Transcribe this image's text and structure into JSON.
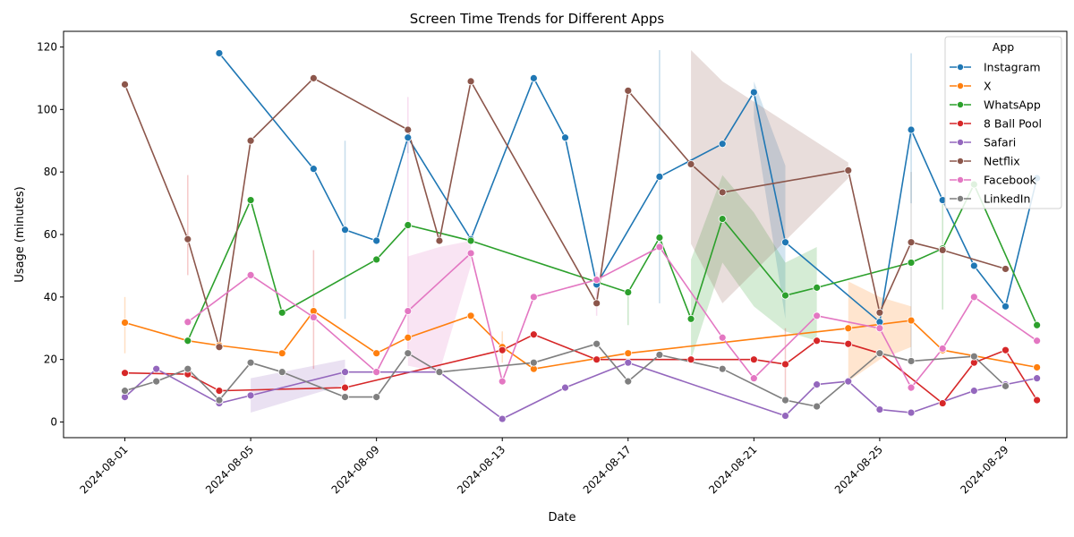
{
  "chart_data": {
    "type": "line",
    "title": "Screen Time Trends for Different Apps",
    "xlabel": "Date",
    "ylabel": "Usage (minutes)",
    "x_tick_labels": [
      "2024-08-01",
      "2024-08-05",
      "2024-08-09",
      "2024-08-13",
      "2024-08-17",
      "2024-08-21",
      "2024-08-25",
      "2024-08-29"
    ],
    "y_ticks": [
      0,
      20,
      40,
      60,
      80,
      100,
      120
    ],
    "ylim": [
      -5,
      125
    ],
    "x_range_days": [
      -0.95,
      30.95
    ],
    "legend": {
      "title": "App",
      "placement": "top-right"
    },
    "grid": false,
    "series": [
      {
        "name": "Instagram",
        "color": "#1f77b4",
        "points": [
          [
            4,
            118
          ],
          [
            7,
            81
          ],
          [
            8,
            61.5
          ],
          [
            9,
            58
          ],
          [
            10,
            91
          ],
          [
            12,
            58.5
          ],
          [
            14,
            110
          ],
          [
            15,
            91
          ],
          [
            16,
            44
          ],
          [
            18,
            78.5
          ],
          [
            20,
            89
          ],
          [
            21,
            105.5
          ],
          [
            22,
            57.5
          ],
          [
            25,
            32
          ],
          [
            26,
            93.5
          ],
          [
            27,
            71
          ],
          [
            28,
            50
          ],
          [
            29,
            37
          ],
          [
            30,
            78
          ]
        ],
        "bands": [
          [
            [
              21,
              109,
              97
            ],
            [
              22,
              82,
              33
            ]
          ]
        ],
        "spikes": [
          [
            8,
            90,
            33
          ],
          [
            18,
            119,
            38
          ],
          [
            26,
            118,
            70
          ],
          [
            10,
            91,
            86
          ]
        ]
      },
      {
        "name": "X",
        "color": "#ff7f0e",
        "points": [
          [
            1,
            31.8
          ],
          [
            3,
            26
          ],
          [
            4,
            24.5
          ],
          [
            6,
            22
          ],
          [
            7,
            35.5
          ],
          [
            9,
            22
          ],
          [
            10,
            27
          ],
          [
            12,
            34
          ],
          [
            13,
            24
          ],
          [
            14,
            17
          ],
          [
            17,
            22
          ],
          [
            24,
            30
          ],
          [
            26,
            32.5
          ],
          [
            27,
            23
          ],
          [
            30,
            17.5
          ]
        ],
        "bands": [
          [
            [
              24,
              45,
              13
            ],
            [
              25,
              40,
              20
            ],
            [
              26,
              37,
              24
            ]
          ]
        ],
        "spikes": [
          [
            1,
            40,
            22
          ],
          [
            13,
            29,
            19
          ]
        ]
      },
      {
        "name": "WhatsApp",
        "color": "#2ca02c",
        "points": [
          [
            3,
            26
          ],
          [
            5,
            71
          ],
          [
            6,
            35
          ],
          [
            9,
            52
          ],
          [
            10,
            63
          ],
          [
            12,
            58
          ],
          [
            17,
            41.5
          ],
          [
            18,
            59
          ],
          [
            19,
            33
          ],
          [
            20,
            65
          ],
          [
            22,
            40.5
          ],
          [
            23,
            43
          ],
          [
            26,
            51
          ],
          [
            27,
            55.5
          ],
          [
            28,
            76
          ],
          [
            30,
            31
          ]
        ],
        "bands": [
          [
            [
              19,
              52,
              20
            ],
            [
              20,
              79,
              51
            ],
            [
              21,
              67,
              37
            ],
            [
              22,
              51,
              29
            ],
            [
              23,
              56,
              26
            ]
          ]
        ],
        "spikes": [
          [
            17,
            41,
            31
          ],
          [
            27,
            72,
            36
          ]
        ]
      },
      {
        "name": "8 Ball Pool",
        "color": "#d62728",
        "points": [
          [
            1,
            15.7
          ],
          [
            3,
            15.3
          ],
          [
            4,
            10
          ],
          [
            8,
            11
          ],
          [
            13,
            23
          ],
          [
            14,
            28
          ],
          [
            16,
            20
          ],
          [
            19,
            20
          ],
          [
            21,
            20
          ],
          [
            22,
            18.5
          ],
          [
            23,
            26
          ],
          [
            24,
            25
          ],
          [
            25,
            22
          ],
          [
            27,
            6
          ],
          [
            28,
            19
          ],
          [
            29,
            23
          ],
          [
            30,
            7
          ]
        ],
        "bands": [],
        "spikes": [
          [
            3,
            79,
            47
          ],
          [
            7,
            55,
            17
          ],
          [
            22,
            30,
            8
          ]
        ]
      },
      {
        "name": "Safari",
        "color": "#9467bd",
        "points": [
          [
            1,
            8
          ],
          [
            2,
            17
          ],
          [
            4,
            6
          ],
          [
            5,
            8.5
          ],
          [
            8,
            16
          ],
          [
            11,
            16
          ],
          [
            13,
            1
          ],
          [
            15,
            11
          ],
          [
            17,
            19
          ],
          [
            22,
            2
          ],
          [
            23,
            12
          ],
          [
            24,
            13
          ],
          [
            25,
            4
          ],
          [
            26,
            3
          ],
          [
            28,
            10
          ],
          [
            29,
            12
          ],
          [
            30,
            14
          ]
        ],
        "bands": [
          [
            [
              5,
              14,
              3
            ],
            [
              8,
              20,
              12
            ]
          ]
        ],
        "spikes": []
      },
      {
        "name": "Netflix",
        "color": "#8c564b",
        "points": [
          [
            1,
            108
          ],
          [
            3,
            58.5
          ],
          [
            4,
            24
          ],
          [
            5,
            90
          ],
          [
            7,
            110
          ],
          [
            10,
            93.5
          ],
          [
            11,
            58
          ],
          [
            12,
            109
          ],
          [
            16,
            38
          ],
          [
            17,
            106
          ],
          [
            19,
            82.5
          ],
          [
            20,
            73.5
          ],
          [
            24,
            80.5
          ],
          [
            25,
            35
          ],
          [
            26,
            57.5
          ],
          [
            27,
            55
          ],
          [
            29,
            49
          ]
        ],
        "bands": [
          [
            [
              19,
              119,
              57
            ],
            [
              20,
              109,
              38
            ],
            [
              24,
              83,
              78
            ]
          ]
        ],
        "spikes": []
      },
      {
        "name": "Facebook",
        "color": "#e377c2",
        "points": [
          [
            3,
            32
          ],
          [
            5,
            47
          ],
          [
            7,
            33.5
          ],
          [
            9,
            16
          ],
          [
            10,
            35.5
          ],
          [
            12,
            54
          ],
          [
            13,
            13
          ],
          [
            14,
            40
          ],
          [
            16,
            45.5
          ],
          [
            18,
            56
          ],
          [
            20,
            27
          ],
          [
            21,
            14
          ],
          [
            23,
            34
          ],
          [
            25,
            30
          ],
          [
            26,
            11
          ],
          [
            27,
            23.5
          ],
          [
            28,
            40
          ],
          [
            30,
            26
          ]
        ],
        "bands": [
          [
            [
              10,
              53,
              18
            ],
            [
              11,
              56,
              16
            ],
            [
              12,
              58,
              50
            ]
          ]
        ],
        "spikes": [
          [
            10,
            104,
            22
          ],
          [
            16,
            48,
            34
          ]
        ]
      },
      {
        "name": "LinkedIn",
        "color": "#7f7f7f",
        "points": [
          [
            1,
            10
          ],
          [
            2,
            13
          ],
          [
            3,
            17
          ],
          [
            4,
            7
          ],
          [
            5,
            19
          ],
          [
            6,
            16
          ],
          [
            8,
            8
          ],
          [
            9,
            8
          ],
          [
            10,
            22
          ],
          [
            11,
            16
          ],
          [
            14,
            19
          ],
          [
            16,
            25
          ],
          [
            17,
            13
          ],
          [
            18,
            21.5
          ],
          [
            20,
            17
          ],
          [
            22,
            7
          ],
          [
            23,
            5
          ],
          [
            25,
            22
          ],
          [
            26,
            19.5
          ],
          [
            28,
            21
          ],
          [
            29,
            11.5
          ]
        ],
        "bands": [],
        "spikes": [
          [
            26,
            80,
            18
          ]
        ]
      }
    ]
  }
}
